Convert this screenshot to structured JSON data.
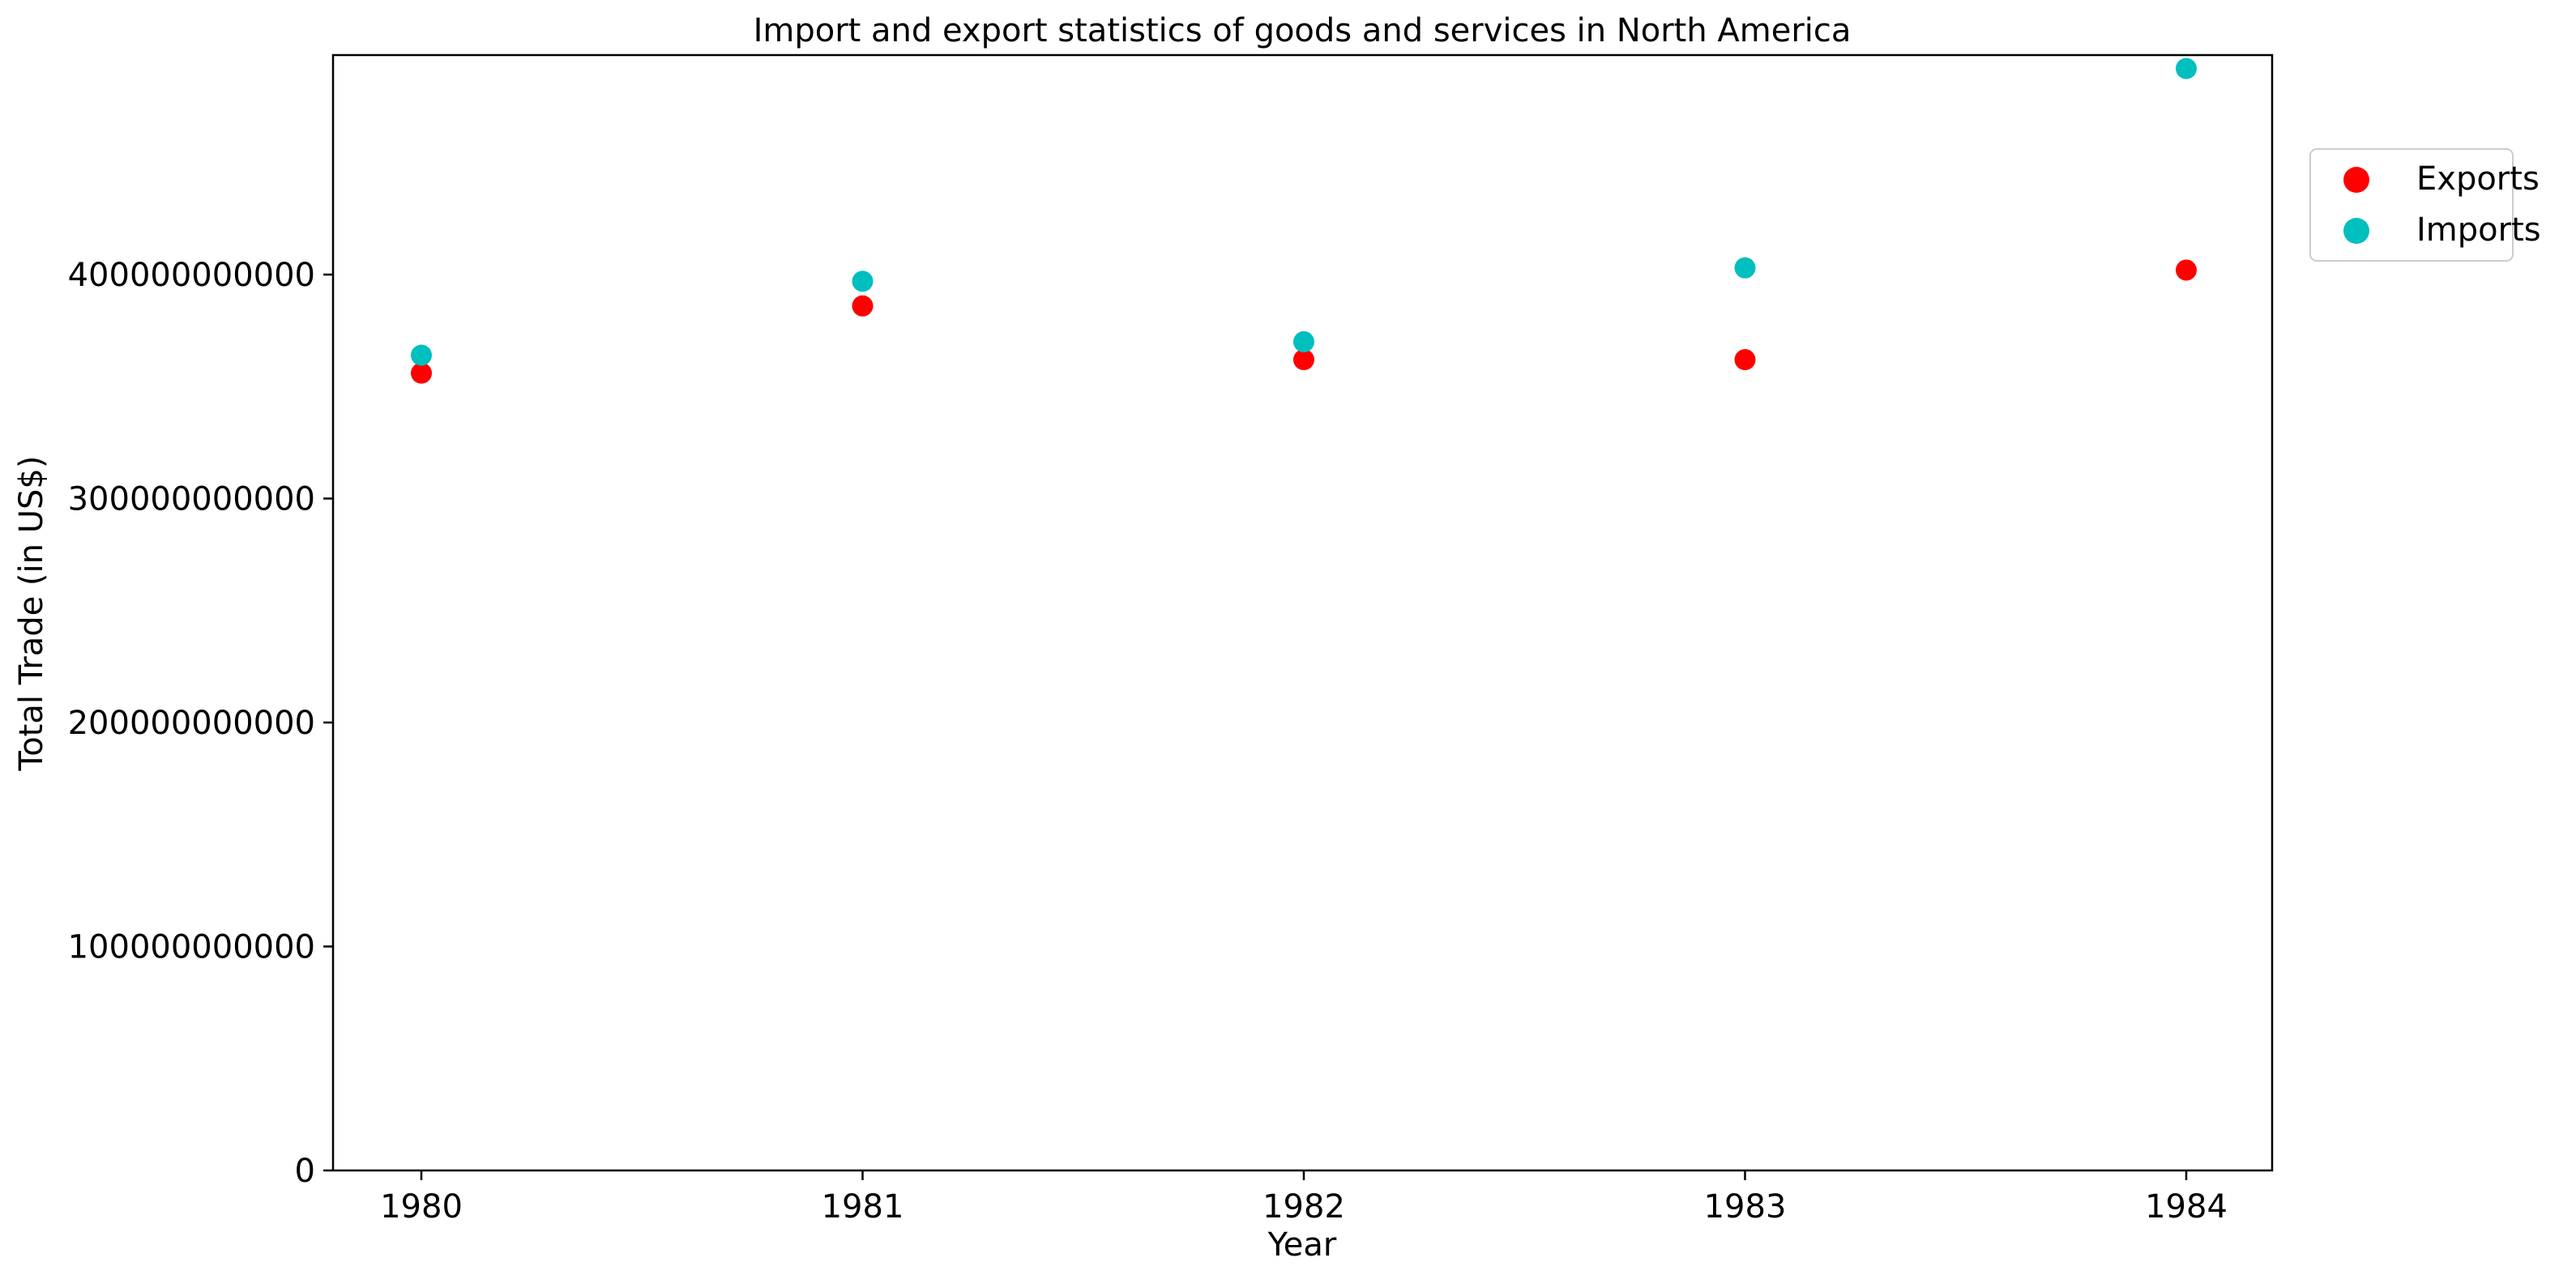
{
  "chart_data": {
    "type": "scatter",
    "title": "Import and export statistics of goods and services in North America",
    "xlabel": "Year",
    "ylabel": "Total Trade (in US$)",
    "x": [
      "1980",
      "1981",
      "1982",
      "1983",
      "1984"
    ],
    "ylim": [
      0,
      498000000000
    ],
    "yticks": [
      0,
      100000000000,
      200000000000,
      300000000000,
      400000000000
    ],
    "ytick_labels": [
      "0",
      "100000000000",
      "200000000000",
      "300000000000",
      "400000000000"
    ],
    "grid": false,
    "legend_position": "right, outside top",
    "series": [
      {
        "name": "Exports",
        "color": "#ff0000",
        "values": [
          356000000000,
          386000000000,
          362000000000,
          362000000000,
          402000000000
        ]
      },
      {
        "name": "Imports",
        "color": "#00bfbf",
        "values": [
          364000000000,
          397000000000,
          370000000000,
          403000000000,
          492000000000
        ]
      }
    ]
  }
}
